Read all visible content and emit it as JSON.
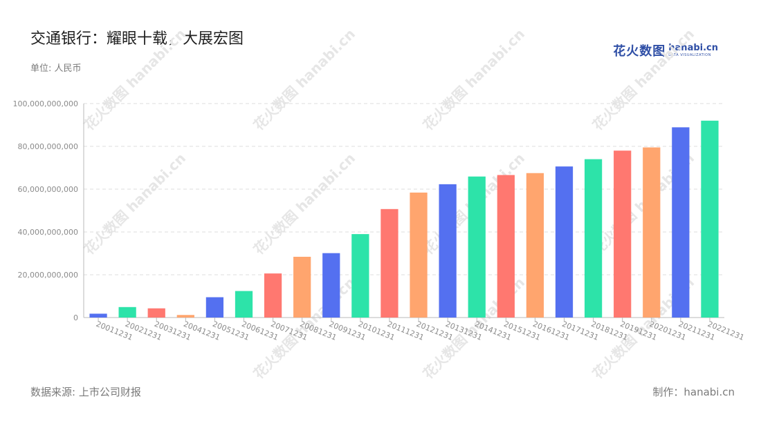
{
  "header": {
    "title": "交通银行：耀眼十载，大展宏图",
    "unit": "单位: 人民币"
  },
  "logo": {
    "cn": "花火数图",
    "en": "hanabi.cn",
    "tagline": "DATA VISUALIZATION"
  },
  "footer": {
    "source": "数据来源: 上市公司财报",
    "credit": "制作：hanabi.cn"
  },
  "watermark": "花火数图 hanabi.cn",
  "colors": {
    "palette": [
      "#5470f0",
      "#2de3a9",
      "#ff7870",
      "#ffa56e"
    ],
    "grid": "#dddddd",
    "axis": "#b9b9b9"
  },
  "chart_data": {
    "type": "bar",
    "title": "交通银行：耀眼十载，大展宏图",
    "ylabel": "单位: 人民币",
    "ylim": [
      0,
      100000000000
    ],
    "yticks": [
      0,
      20000000000,
      40000000000,
      60000000000,
      80000000000,
      100000000000
    ],
    "ytick_labels": [
      "0",
      "20,000,000,000",
      "40,000,000,000",
      "60,000,000,000",
      "80,000,000,000",
      "100,000,000,000"
    ],
    "grid": true,
    "categories": [
      "20011231",
      "20021231",
      "20031231",
      "20041231",
      "20051231",
      "20061231",
      "20071231",
      "20081231",
      "20091231",
      "20101231",
      "20111231",
      "20121231",
      "20131231",
      "20141231",
      "20151231",
      "20161231",
      "20171231",
      "20181231",
      "20191231",
      "20201231",
      "20211231",
      "20221231"
    ],
    "values": [
      1800000000,
      4900000000,
      4300000000,
      1200000000,
      9500000000,
      12400000000,
      20600000000,
      28400000000,
      30100000000,
      39000000000,
      50700000000,
      58400000000,
      62300000000,
      65900000000,
      66600000000,
      67500000000,
      70600000000,
      74000000000,
      78000000000,
      79500000000,
      88900000000,
      92000000000
    ],
    "bar_colors": [
      "#5470f0",
      "#2de3a9",
      "#ff7870",
      "#ffa56e",
      "#5470f0",
      "#2de3a9",
      "#ff7870",
      "#ffa56e",
      "#5470f0",
      "#2de3a9",
      "#ff7870",
      "#ffa56e",
      "#5470f0",
      "#2de3a9",
      "#ff7870",
      "#ffa56e",
      "#5470f0",
      "#2de3a9",
      "#ff7870",
      "#ffa56e",
      "#5470f0",
      "#2de3a9"
    ]
  }
}
